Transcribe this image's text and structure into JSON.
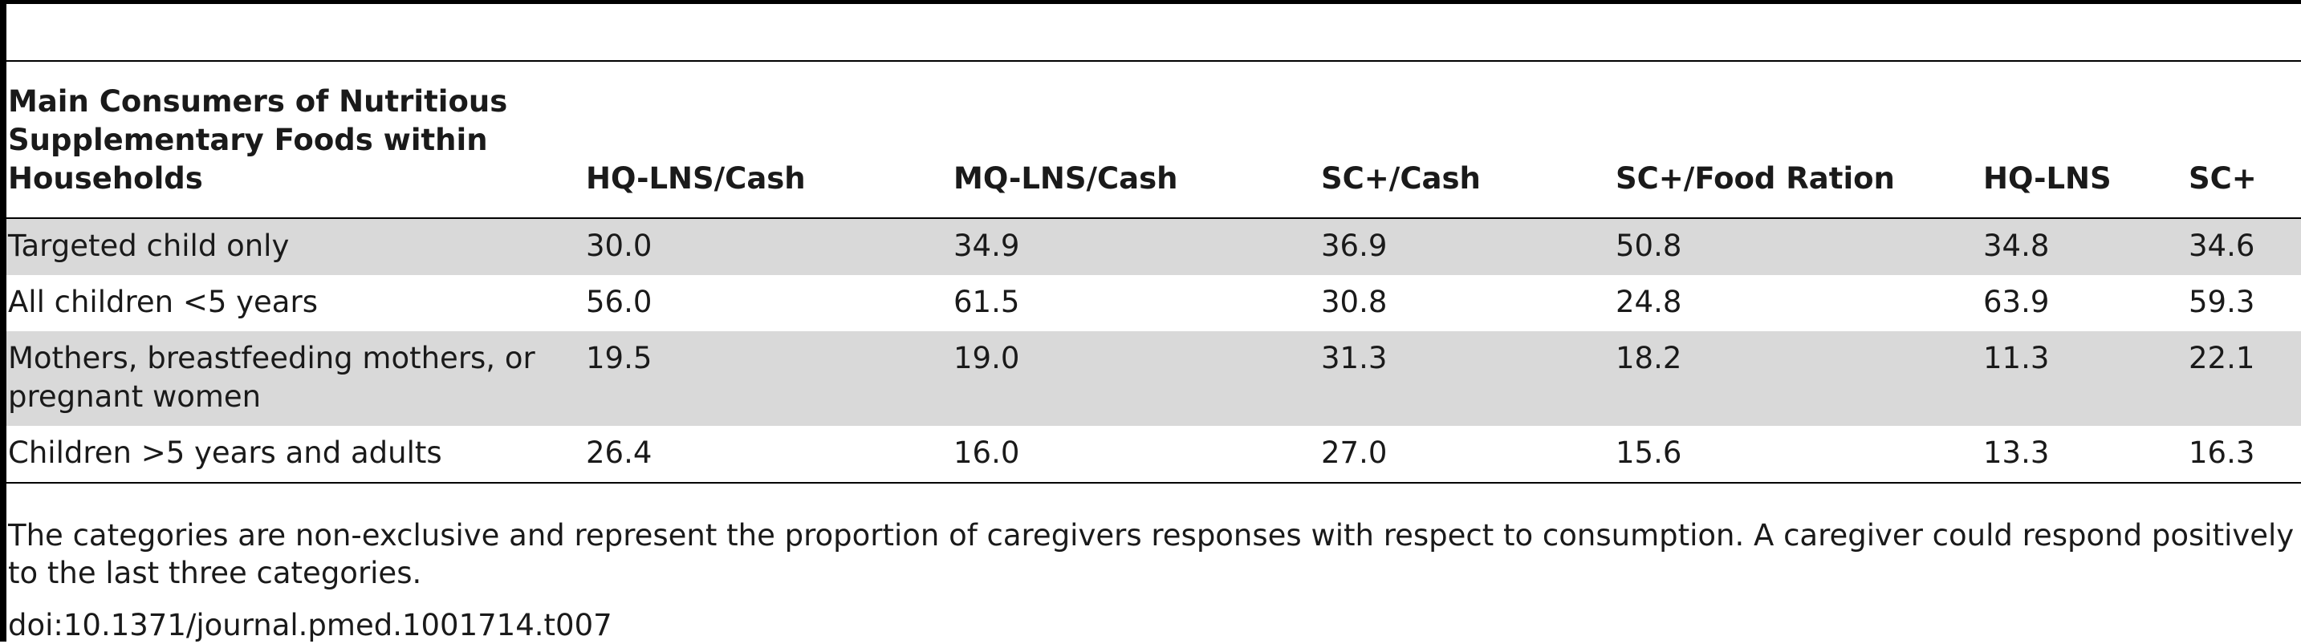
{
  "table": {
    "header": {
      "first_col": "Main Consumers of Nutritious Supplementary Foods within Households",
      "columns": [
        "HQ-LNS/Cash",
        "MQ-LNS/Cash",
        "SC+/Cash",
        "SC+/Food Ration",
        "HQ-LNS",
        "SC+"
      ]
    },
    "rows": [
      {
        "label": "Targeted child only",
        "values": [
          "30.0",
          "34.9",
          "36.9",
          "50.8",
          "34.8",
          "34.6"
        ]
      },
      {
        "label": "All children <5 years",
        "values": [
          "56.0",
          "61.5",
          "30.8",
          "24.8",
          "63.9",
          "59.3"
        ]
      },
      {
        "label": "Mothers, breastfeeding mothers, or pregnant women",
        "values": [
          "19.5",
          "19.0",
          "31.3",
          "18.2",
          "11.3",
          "22.1"
        ]
      },
      {
        "label": "Children >5 years and adults",
        "values": [
          "26.4",
          "16.0",
          "27.0",
          "15.6",
          "13.3",
          "16.3"
        ]
      }
    ]
  },
  "footnote": "The categories are non-exclusive and represent the proportion of caregivers responses with respect to consumption. A caregiver could respond positively to the last three categories.",
  "doi": "doi:10.1371/journal.pmed.1001714.t007"
}
